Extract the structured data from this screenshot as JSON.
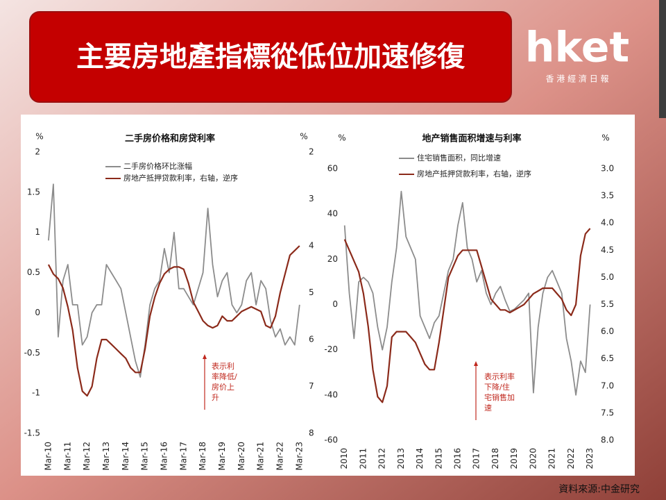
{
  "header": {
    "title": "主要房地產指標從低位加速修復"
  },
  "logo": {
    "name": "hket",
    "subtitle": "香 港 經 濟 日 報"
  },
  "source": "資料來源:中金研究",
  "chart_data": [
    {
      "type": "line",
      "title": "二手房价格和房贷利率",
      "y_unit": "%",
      "y2_unit": "%",
      "x": [
        2010.17,
        2010.42,
        2010.67,
        2010.92,
        2011.17,
        2011.42,
        2011.67,
        2011.92,
        2012.17,
        2012.42,
        2012.67,
        2012.92,
        2013.17,
        2013.42,
        2013.67,
        2013.92,
        2014.17,
        2014.42,
        2014.67,
        2014.92,
        2015.17,
        2015.42,
        2015.67,
        2015.92,
        2016.17,
        2016.42,
        2016.67,
        2016.92,
        2017.17,
        2017.42,
        2017.67,
        2017.92,
        2018.17,
        2018.42,
        2018.67,
        2018.92,
        2019.17,
        2019.42,
        2019.67,
        2019.92,
        2020.17,
        2020.42,
        2020.67,
        2020.92,
        2021.17,
        2021.42,
        2021.67,
        2021.92,
        2022.17,
        2022.42,
        2022.67,
        2022.92,
        2023.17
      ],
      "xlim": [
        2010.1,
        2023.25
      ],
      "xticks": [
        {
          "value": 2010.17,
          "label": "Mar-10"
        },
        {
          "value": 2011.17,
          "label": "Mar-11"
        },
        {
          "value": 2012.17,
          "label": "Mar-12"
        },
        {
          "value": 2013.17,
          "label": "Mar-13"
        },
        {
          "value": 2014.17,
          "label": "Mar-14"
        },
        {
          "value": 2015.17,
          "label": "Mar-15"
        },
        {
          "value": 2016.17,
          "label": "Mar-16"
        },
        {
          "value": 2017.17,
          "label": "Mar-17"
        },
        {
          "value": 2018.17,
          "label": "Mar-18"
        },
        {
          "value": 2019.17,
          "label": "Mar-19"
        },
        {
          "value": 2020.17,
          "label": "Mar-20"
        },
        {
          "value": 2021.17,
          "label": "Mar-21"
        },
        {
          "value": 2022.17,
          "label": "Mar-22"
        },
        {
          "value": 2023.17,
          "label": "Mar-23"
        }
      ],
      "ylim": [
        -1.5,
        2
      ],
      "yticks": [
        2,
        1.5,
        1,
        0.5,
        0,
        -0.5,
        -1,
        -1.5
      ],
      "y2lim": [
        2,
        8
      ],
      "y2ticks": [
        2,
        3,
        4,
        5,
        6,
        7,
        8
      ],
      "y2_reversed": true,
      "series": [
        {
          "name": "二手房价格环比涨幅",
          "color": "#8c8c8c",
          "values": [
            0.9,
            1.6,
            -0.3,
            0.4,
            0.6,
            0.1,
            0.1,
            -0.4,
            -0.3,
            0.0,
            0.1,
            0.1,
            0.6,
            0.5,
            0.4,
            0.3,
            0.0,
            -0.3,
            -0.6,
            -0.8,
            -0.4,
            0.1,
            0.3,
            0.4,
            0.8,
            0.5,
            1.0,
            0.3,
            0.3,
            0.2,
            0.1,
            0.3,
            0.5,
            1.3,
            0.6,
            0.2,
            0.4,
            0.5,
            0.1,
            0.0,
            0.1,
            0.4,
            0.5,
            0.1,
            0.4,
            0.3,
            -0.1,
            -0.3,
            -0.2,
            -0.4,
            -0.3,
            -0.4,
            0.1
          ]
        },
        {
          "name": "房地产抵押贷款利率，右轴，逆序",
          "color": "#8b2a1a",
          "axis": "y2",
          "values": [
            4.4,
            4.6,
            4.7,
            4.9,
            5.3,
            5.8,
            6.6,
            7.1,
            7.2,
            7.0,
            6.4,
            6.0,
            6.0,
            6.1,
            6.2,
            6.3,
            6.4,
            6.6,
            6.7,
            6.7,
            6.2,
            5.5,
            5.1,
            4.8,
            4.6,
            4.5,
            4.45,
            4.45,
            4.5,
            4.8,
            5.2,
            5.4,
            5.6,
            5.7,
            5.75,
            5.7,
            5.5,
            5.6,
            5.6,
            5.5,
            5.4,
            5.35,
            5.3,
            5.35,
            5.4,
            5.7,
            5.75,
            5.5,
            5.0,
            4.6,
            4.2,
            4.1,
            4.0
          ]
        }
      ],
      "annotation": [
        "表示利",
        "率降低/",
        "房价上",
        "升"
      ]
    },
    {
      "type": "line",
      "title": "地产销售面积增速与利率",
      "y_unit": "%",
      "y2_unit": "%",
      "x": [
        2010,
        2010.25,
        2010.5,
        2010.75,
        2011,
        2011.25,
        2011.5,
        2011.75,
        2012,
        2012.25,
        2012.5,
        2012.75,
        2013,
        2013.25,
        2013.5,
        2013.75,
        2014,
        2014.25,
        2014.5,
        2014.75,
        2015,
        2015.25,
        2015.5,
        2015.75,
        2016,
        2016.25,
        2016.5,
        2016.75,
        2017,
        2017.25,
        2017.5,
        2017.75,
        2018,
        2018.25,
        2018.5,
        2018.75,
        2019,
        2019.25,
        2019.5,
        2019.75,
        2020,
        2020.25,
        2020.5,
        2020.75,
        2021,
        2021.25,
        2021.5,
        2021.75,
        2022,
        2022.25,
        2022.5,
        2022.75,
        2023
      ],
      "xlim": [
        2009.9,
        2023.2
      ],
      "xticks": [
        2010,
        2011,
        2012,
        2013,
        2014,
        2015,
        2016,
        2017,
        2018,
        2019,
        2020,
        2021,
        2022,
        2023
      ],
      "ylim": [
        -60,
        60
      ],
      "yticks": [
        60,
        40,
        20,
        0,
        -20,
        -40,
        -60
      ],
      "y2lim": [
        3,
        8
      ],
      "y2ticks": [
        {
          "value": 3,
          "label": "3.0"
        },
        3.5,
        {
          "value": 4,
          "label": "4.0"
        },
        4.5,
        {
          "value": 5,
          "label": "5.0"
        },
        5.5,
        {
          "value": 6,
          "label": "6.0"
        },
        6.5,
        {
          "value": 7,
          "label": "7.0"
        },
        7.5,
        {
          "value": 8,
          "label": "8.0"
        }
      ],
      "y2_reversed": true,
      "series": [
        {
          "name": "住宅销售面积，同比增速",
          "color": "#8c8c8c",
          "values": [
            35,
            5,
            -15,
            10,
            12,
            10,
            5,
            -10,
            -20,
            -10,
            10,
            25,
            50,
            30,
            25,
            20,
            -5,
            -10,
            -15,
            -8,
            -5,
            5,
            15,
            20,
            35,
            45,
            25,
            20,
            10,
            15,
            5,
            0,
            5,
            8,
            2,
            -3,
            -2,
            0,
            2,
            5,
            -39,
            -10,
            5,
            12,
            15,
            10,
            5,
            -15,
            -25,
            -40,
            -25,
            -30,
            0
          ]
        },
        {
          "name": "房地产抵押贷款利率，右轴，逆序",
          "color": "#8b2a1a",
          "axis": "y2",
          "values": [
            4.3,
            4.5,
            4.7,
            4.9,
            5.3,
            5.9,
            6.7,
            7.2,
            7.3,
            7.0,
            6.1,
            6.0,
            6.0,
            6.0,
            6.1,
            6.2,
            6.4,
            6.6,
            6.7,
            6.7,
            6.2,
            5.6,
            5.0,
            4.8,
            4.6,
            4.5,
            4.5,
            4.5,
            4.5,
            4.8,
            5.1,
            5.4,
            5.5,
            5.6,
            5.6,
            5.65,
            5.6,
            5.55,
            5.5,
            5.4,
            5.3,
            5.25,
            5.2,
            5.2,
            5.2,
            5.3,
            5.4,
            5.6,
            5.7,
            5.5,
            4.6,
            4.2,
            4.1
          ]
        }
      ],
      "annotation": [
        "表示利率",
        "下降/住",
        "宅销售加",
        "速"
      ]
    }
  ]
}
